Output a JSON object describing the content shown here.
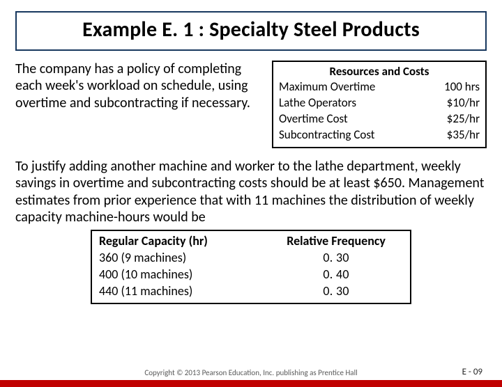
{
  "title": "Example E. 1 : Specialty Steel Products",
  "policy_text": "The company has a policy of completing each week's workload on schedule, using overtime and subcontracting if necessary.",
  "resources": {
    "heading": "Resources and Costs",
    "rows": [
      {
        "label": "Maximum Overtime",
        "value": "100 hrs"
      },
      {
        "label": "Lathe Operators",
        "value": "$10/hr"
      },
      {
        "label": "Overtime Cost",
        "value": "$25/hr"
      },
      {
        "label": "Subcontracting Cost",
        "value": "$35/hr"
      }
    ]
  },
  "justify_text": "To justify adding another machine and worker to the lathe department, weekly savings in overtime and subcontracting costs should be at least $650. Management estimates from prior experience that with 11 machines the distribution of weekly capacity machine-hours would be",
  "capacity": {
    "col1_header": "Regular Capacity (hr)",
    "col2_header": "Relative Frequency",
    "rows": [
      {
        "capacity": "360 (9 machines)",
        "freq": "0. 30"
      },
      {
        "capacity": "400 (10 machines)",
        "freq": "0. 40"
      },
      {
        "capacity": "440 (11 machines)",
        "freq": "0. 30"
      }
    ]
  },
  "copyright": "Copyright © 2013 Pearson Education, Inc. publishing as Prentice Hall",
  "slide_number": "E   - 09",
  "colors": {
    "accent": "#c00000",
    "title_border": "#17375e",
    "text": "#000000",
    "background": "#ffffff",
    "footer_text": "#595959"
  },
  "typography": {
    "title_fontsize": 30,
    "body_fontsize": 20,
    "table_fontsize": 17,
    "footer_fontsize": 11,
    "font_family": "Calibri"
  }
}
